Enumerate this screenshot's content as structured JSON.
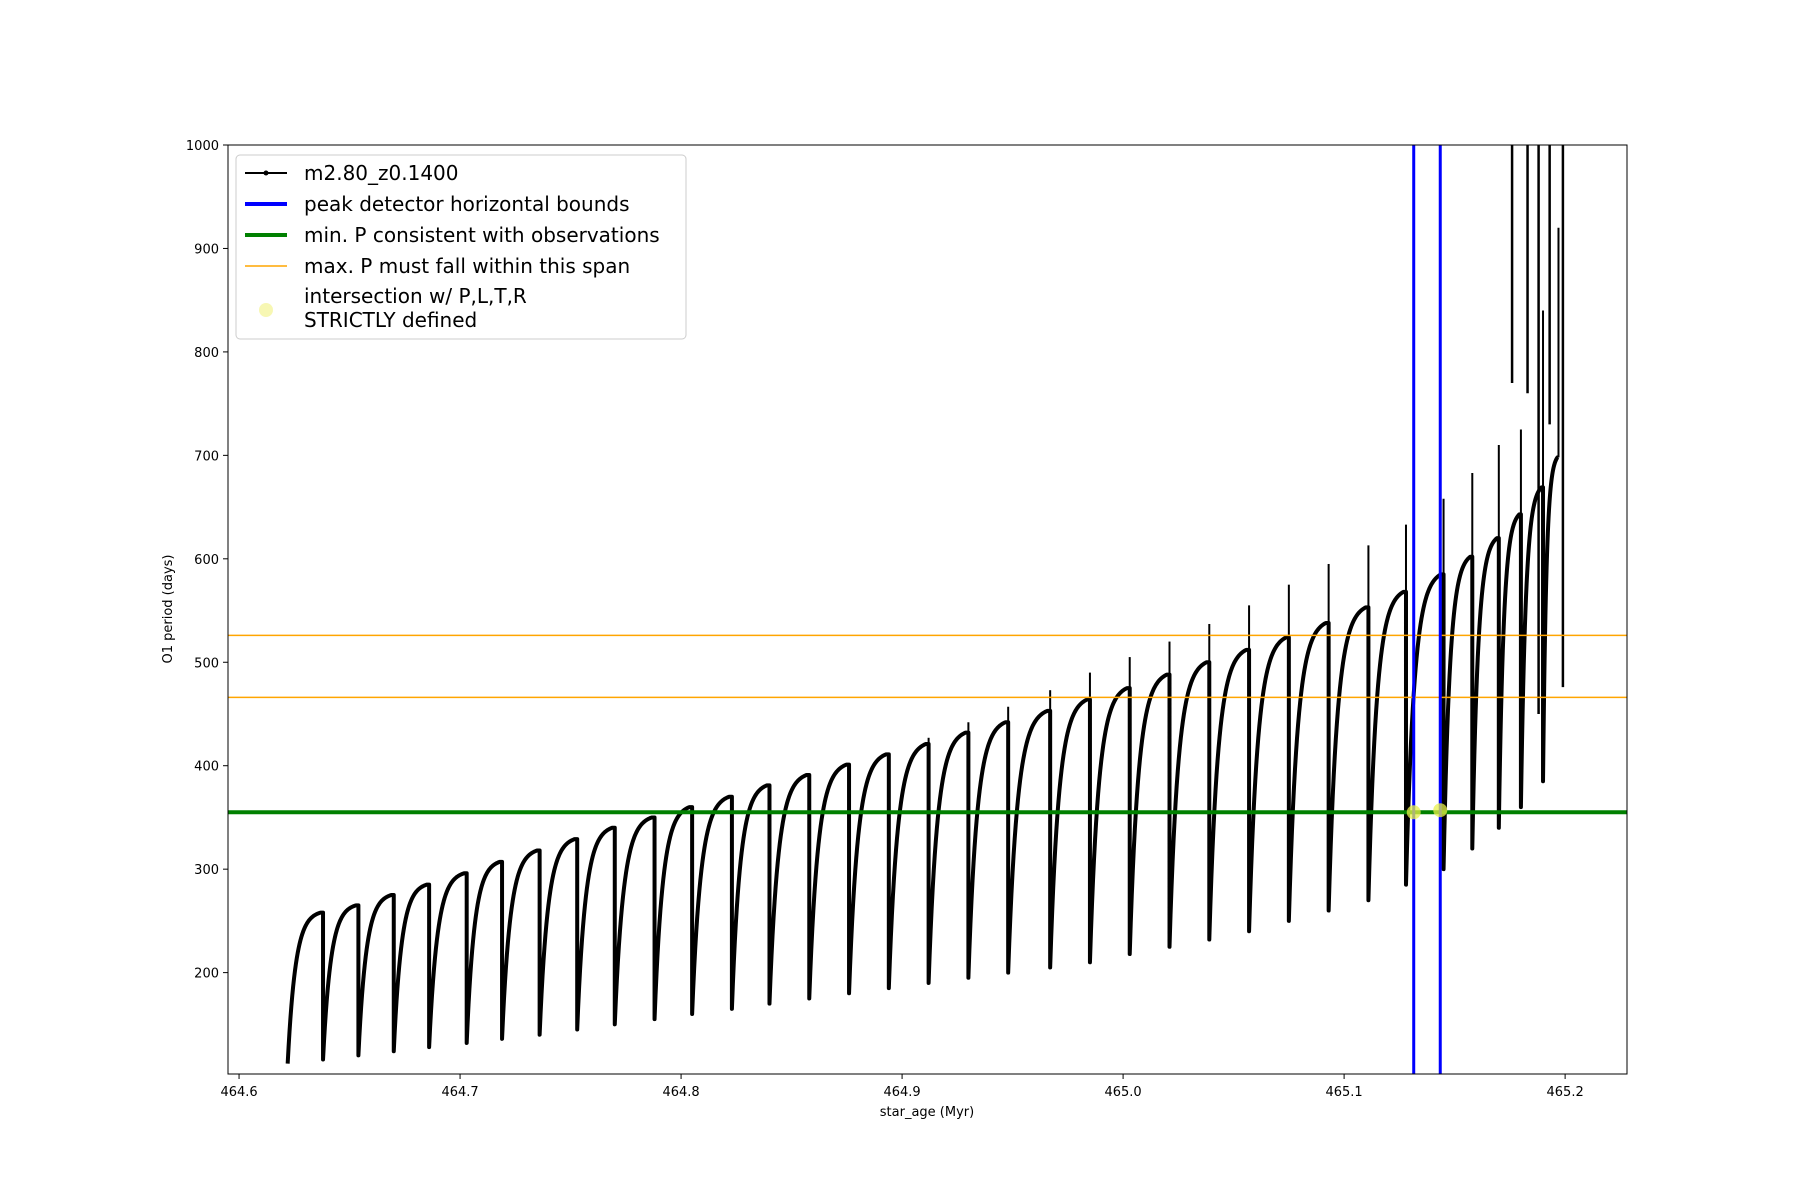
{
  "chart_data": {
    "type": "line",
    "xlabel": "star_age (Myr)",
    "ylabel": "O1 period (days)",
    "xlim": [
      464.595,
      465.228
    ],
    "ylim": [
      102,
      1000
    ],
    "xticks": [
      "464.6",
      "464.7",
      "464.8",
      "464.9",
      "465.0",
      "465.1",
      "465.2"
    ],
    "xtick_values": [
      464.6,
      464.7,
      464.8,
      464.9,
      465.0,
      465.1,
      465.2
    ],
    "yticks": [
      "200",
      "300",
      "400",
      "500",
      "600",
      "700",
      "800",
      "900",
      "1000"
    ],
    "ytick_values": [
      200,
      300,
      400,
      500,
      600,
      700,
      800,
      900,
      1000
    ],
    "grid": false,
    "legend_position": "top-left",
    "legend": [
      {
        "label": "m2.80_z0.1400",
        "kind": "line-marker",
        "color": "#000000"
      },
      {
        "label": "peak detector horizontal bounds",
        "kind": "line",
        "color": "#0000ff"
      },
      {
        "label": "min. P consistent with observations",
        "kind": "line",
        "color": "#008000"
      },
      {
        "label": "max. P must fall within this span",
        "kind": "line",
        "color": "#ffa500"
      },
      {
        "label_lines": [
          "intersection w/ P,L,T,R",
          "STRICTLY defined"
        ],
        "kind": "dot",
        "color": "#f5f5a0"
      }
    ],
    "series": [
      {
        "name": "m2.80_z0.1400",
        "color": "#000000",
        "pulses": [
          {
            "t0": 464.622,
            "t1": 464.638,
            "min": 112,
            "max": 258,
            "spike": 222
          },
          {
            "t0": 464.638,
            "t1": 464.654,
            "min": 116,
            "max": 265,
            "spike": 265
          },
          {
            "t0": 464.654,
            "t1": 464.67,
            "min": 120,
            "max": 275,
            "spike": 275
          },
          {
            "t0": 464.67,
            "t1": 464.686,
            "min": 124,
            "max": 285,
            "spike": 285
          },
          {
            "t0": 464.686,
            "t1": 464.703,
            "min": 128,
            "max": 296,
            "spike": 296
          },
          {
            "t0": 464.703,
            "t1": 464.719,
            "min": 132,
            "max": 307,
            "spike": 307
          },
          {
            "t0": 464.719,
            "t1": 464.736,
            "min": 136,
            "max": 318,
            "spike": 318
          },
          {
            "t0": 464.736,
            "t1": 464.753,
            "min": 140,
            "max": 329,
            "spike": 329
          },
          {
            "t0": 464.753,
            "t1": 464.77,
            "min": 145,
            "max": 340,
            "spike": 340
          },
          {
            "t0": 464.77,
            "t1": 464.788,
            "min": 150,
            "max": 350,
            "spike": 350
          },
          {
            "t0": 464.788,
            "t1": 464.805,
            "min": 155,
            "max": 360,
            "spike": 360
          },
          {
            "t0": 464.805,
            "t1": 464.823,
            "min": 160,
            "max": 370,
            "spike": 370
          },
          {
            "t0": 464.823,
            "t1": 464.84,
            "min": 165,
            "max": 381,
            "spike": 381
          },
          {
            "t0": 464.84,
            "t1": 464.858,
            "min": 170,
            "max": 391,
            "spike": 391
          },
          {
            "t0": 464.858,
            "t1": 464.876,
            "min": 175,
            "max": 401,
            "spike": 401
          },
          {
            "t0": 464.876,
            "t1": 464.894,
            "min": 180,
            "max": 411,
            "spike": 411
          },
          {
            "t0": 464.894,
            "t1": 464.912,
            "min": 185,
            "max": 421,
            "spike": 427
          },
          {
            "t0": 464.912,
            "t1": 464.93,
            "min": 190,
            "max": 432,
            "spike": 442
          },
          {
            "t0": 464.93,
            "t1": 464.948,
            "min": 195,
            "max": 442,
            "spike": 457
          },
          {
            "t0": 464.948,
            "t1": 464.967,
            "min": 200,
            "max": 453,
            "spike": 473
          },
          {
            "t0": 464.967,
            "t1": 464.985,
            "min": 205,
            "max": 464,
            "spike": 490
          },
          {
            "t0": 464.985,
            "t1": 465.003,
            "min": 210,
            "max": 475,
            "spike": 505
          },
          {
            "t0": 465.003,
            "t1": 465.021,
            "min": 218,
            "max": 488,
            "spike": 520
          },
          {
            "t0": 465.021,
            "t1": 465.039,
            "min": 225,
            "max": 500,
            "spike": 537
          },
          {
            "t0": 465.039,
            "t1": 465.057,
            "min": 232,
            "max": 512,
            "spike": 555
          },
          {
            "t0": 465.057,
            "t1": 465.075,
            "min": 240,
            "max": 524,
            "spike": 575
          },
          {
            "t0": 465.075,
            "t1": 465.093,
            "min": 250,
            "max": 538,
            "spike": 595
          },
          {
            "t0": 465.093,
            "t1": 465.111,
            "min": 260,
            "max": 553,
            "spike": 613
          },
          {
            "t0": 465.111,
            "t1": 465.128,
            "min": 270,
            "max": 568,
            "spike": 633
          },
          {
            "t0": 465.128,
            "t1": 465.145,
            "min": 285,
            "max": 585,
            "spike": 658
          },
          {
            "t0": 465.145,
            "t1": 465.158,
            "min": 300,
            "max": 602,
            "spike": 683
          },
          {
            "t0": 465.158,
            "t1": 465.17,
            "min": 320,
            "max": 620,
            "spike": 710
          },
          {
            "t0": 465.17,
            "t1": 465.18,
            "min": 340,
            "max": 643,
            "spike": 725
          },
          {
            "t0": 465.18,
            "t1": 465.19,
            "min": 360,
            "max": 669,
            "spike": 840
          },
          {
            "t0": 465.19,
            "t1": 465.197,
            "min": 385,
            "max": 698,
            "spike": 920
          }
        ]
      }
    ],
    "vlines": [
      {
        "name": "peak detector horizontal bounds",
        "x": 465.1315,
        "color": "#0000ff"
      },
      {
        "name": "peak detector horizontal bounds",
        "x": 465.1435,
        "color": "#0000ff"
      }
    ],
    "hlines": [
      {
        "name": "min. P consistent with observations",
        "y": 355,
        "color": "#008000"
      },
      {
        "name": "max. P must fall within this span",
        "y": 466,
        "color": "#ffa500"
      },
      {
        "name": "max. P must fall within this span",
        "y": 526,
        "color": "#ffa500"
      }
    ],
    "intersections": [
      {
        "x": 465.1315,
        "y": 355
      },
      {
        "x": 465.1435,
        "y": 357
      }
    ]
  }
}
